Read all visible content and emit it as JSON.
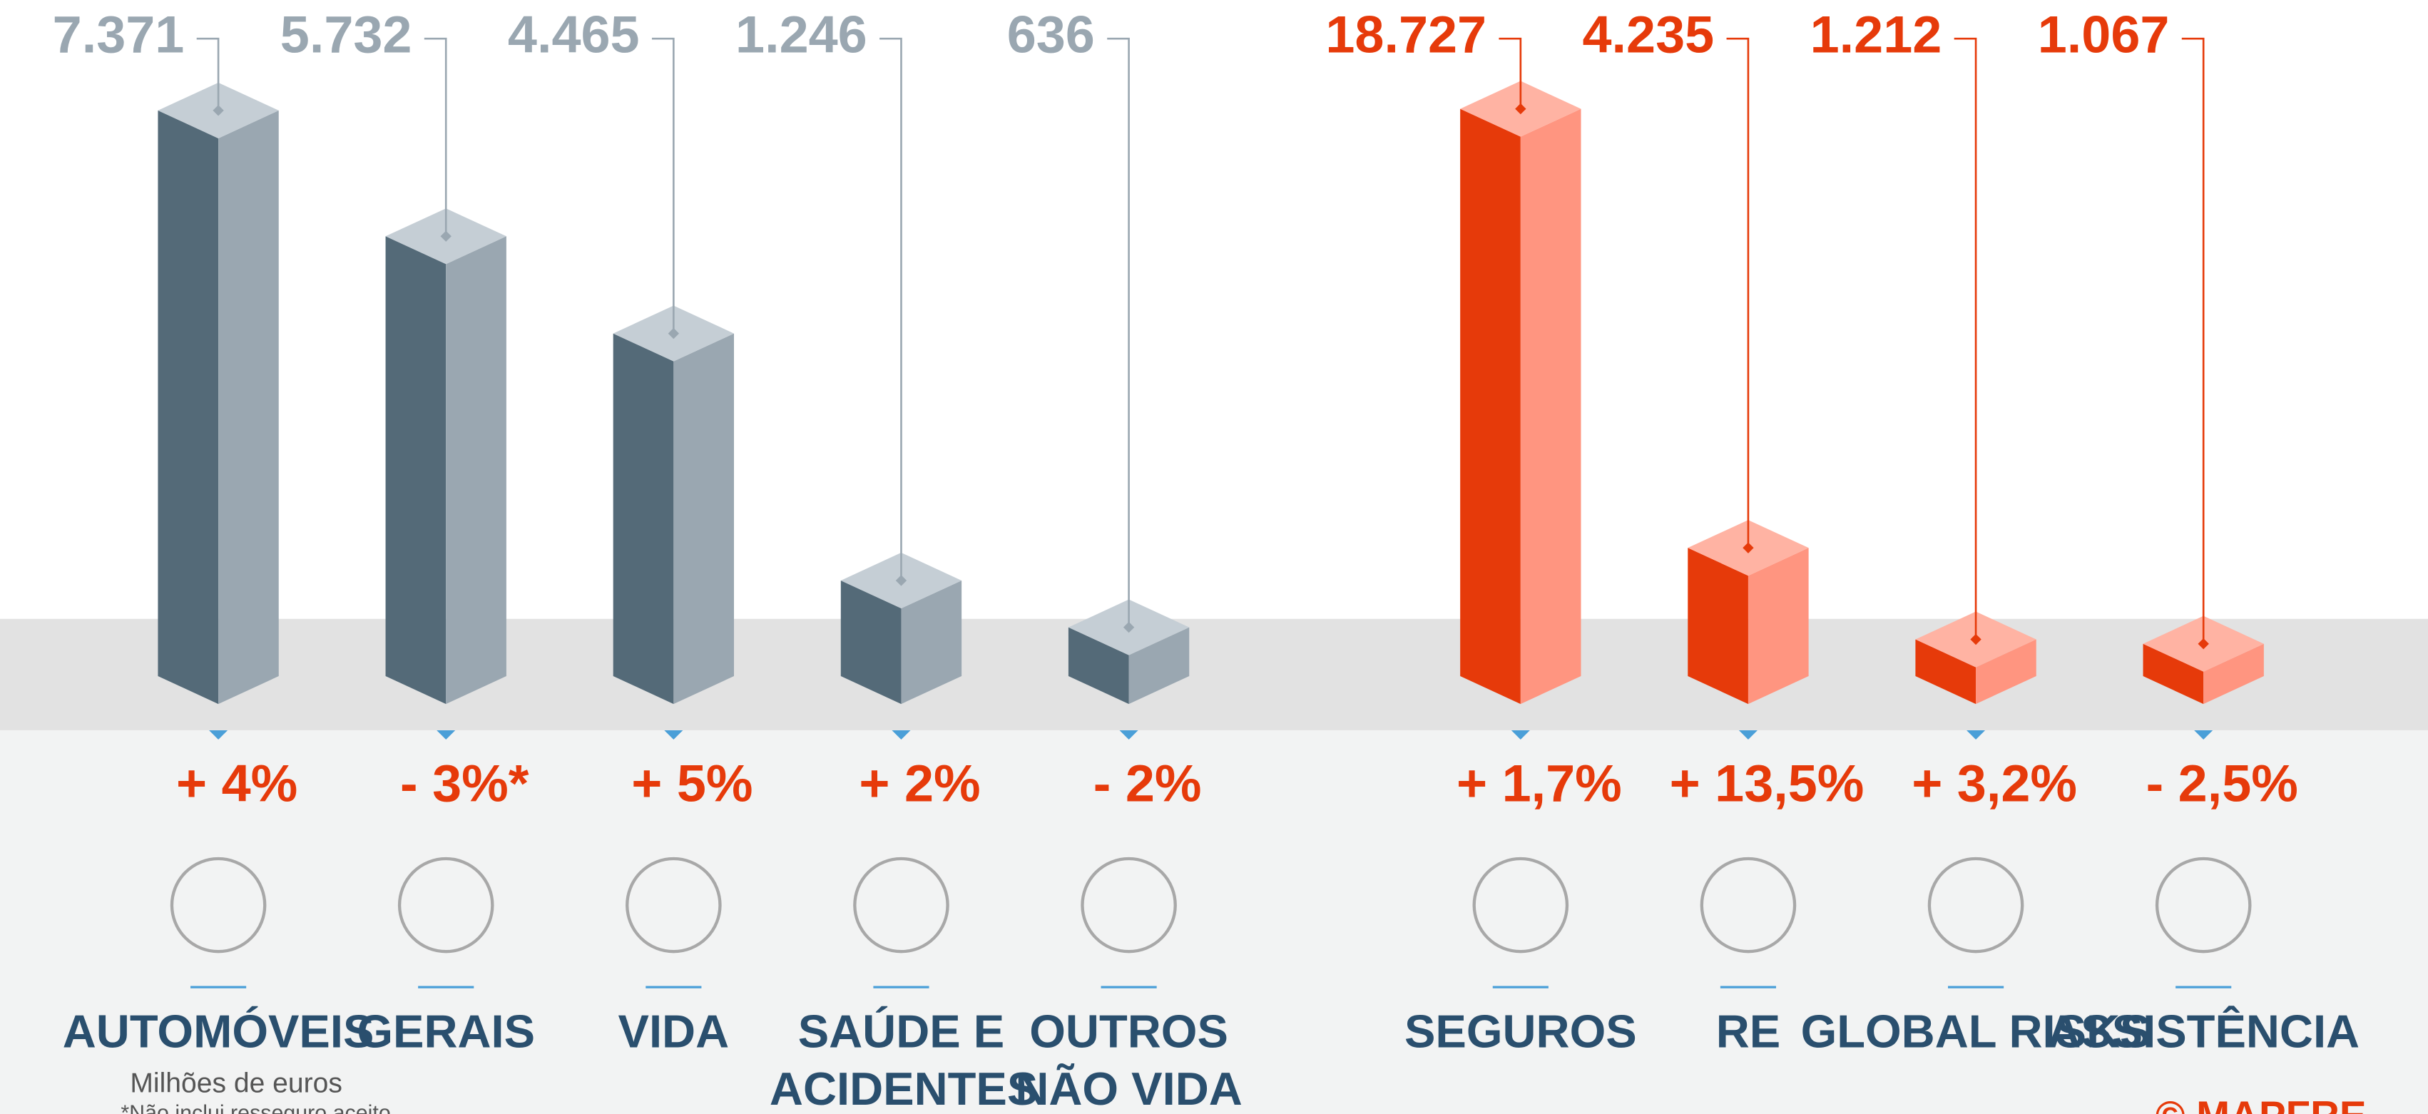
{
  "chart_data": [
    {
      "type": "bar3d",
      "categories": [
        "AUTOMÓVEIS",
        "GERAIS",
        "VIDA",
        "SAÚDE E ACIDENTES",
        "OUTROS NÃO VIDA"
      ],
      "values": [
        7371,
        5732,
        4465,
        1246,
        636
      ],
      "value_labels": [
        "7.371",
        "5.732",
        "4.465",
        "1.246",
        "636"
      ],
      "changes": [
        "+ 4%",
        "- 3%*",
        "+ 5%",
        "+ 2%",
        "- 2%"
      ],
      "colors": {
        "left": "#546a78",
        "right": "#9aa7b1",
        "top": "#c5ced5",
        "label": "#9aa7b1"
      },
      "ylim": [
        0,
        7500
      ]
    },
    {
      "type": "bar3d",
      "categories": [
        "SEGUROS",
        "RE",
        "GLOBAL RISKS",
        "ASSISTÊNCIA"
      ],
      "values": [
        18727,
        4235,
        1212,
        1067
      ],
      "value_labels": [
        "18.727",
        "4.235",
        "1.212",
        "1.067"
      ],
      "changes": [
        "+ 1,7%",
        "+ 13,5%",
        "+ 3,2%",
        "- 2,5%"
      ],
      "colors": {
        "left": "#e63a0a",
        "right": "#ff9580",
        "top": "#ffb3a3",
        "label": "#e63a0a"
      },
      "ylim": [
        0,
        19000
      ]
    }
  ],
  "notes": {
    "unit": "Milhões de euros",
    "footnote": "*Não inclui resseguro aceito",
    "brand": "© MAPFRE"
  }
}
